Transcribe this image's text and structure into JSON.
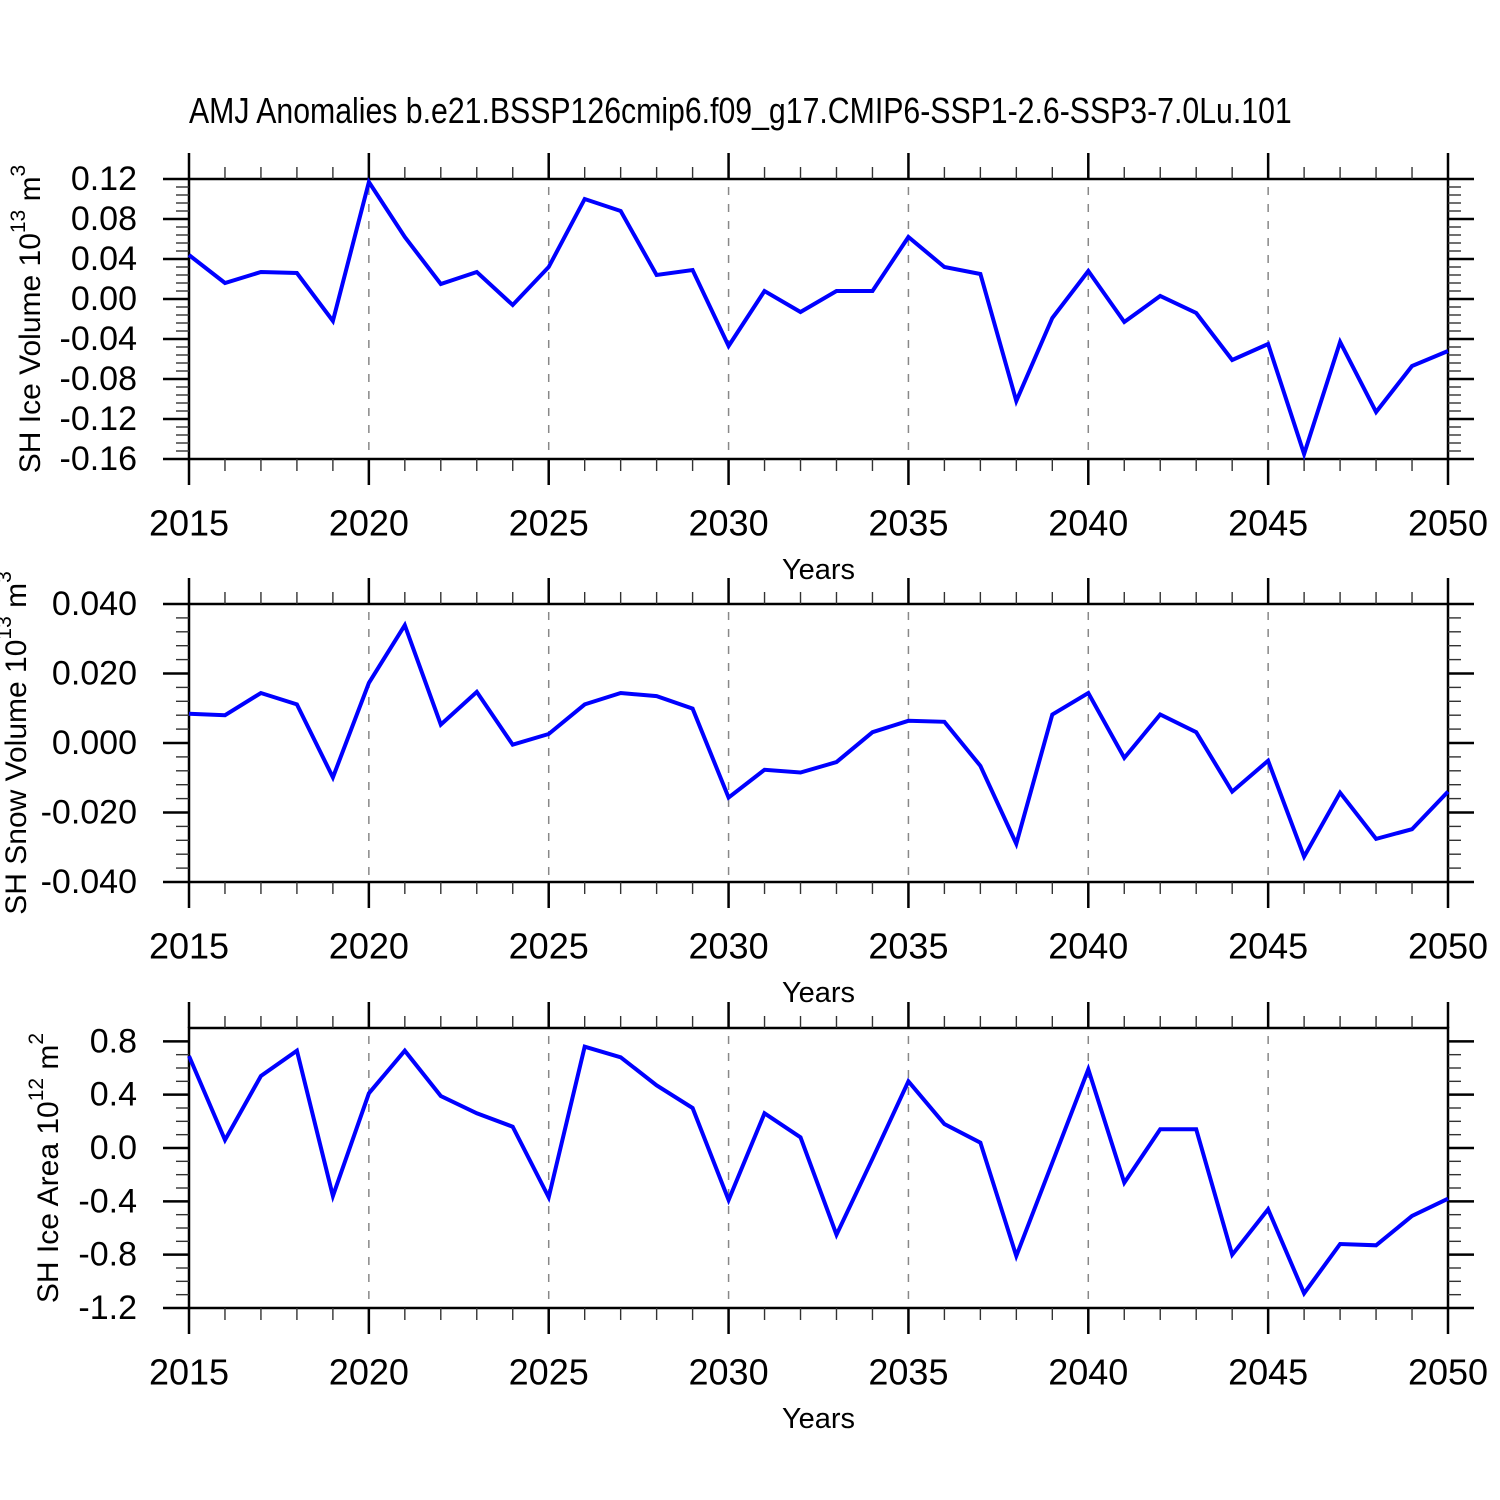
{
  "title": "AMJ Anomalies b.e21.BSSP126cmip6.f09_g17.CMIP6-SSP1-2.6-SSP3-7.0Lu.101",
  "x_axis": {
    "label": "Years",
    "major_ticks": [
      2015,
      2020,
      2025,
      2030,
      2035,
      2040,
      2045,
      2050
    ],
    "gridline_years": [
      2020,
      2025,
      2030,
      2035,
      2040,
      2045
    ],
    "minor_step_years": 1,
    "range": [
      2015,
      2050
    ]
  },
  "style": {
    "line_color": "#0000ff",
    "frame_color": "#000000",
    "gridline_color": "#888888"
  },
  "chart_data": [
    {
      "type": "line",
      "name": "sh-ice-volume",
      "ylabel_plain": "SH Ice Volume 10^13 m^3",
      "ylabel_segments": [
        {
          "t": "SH Ice Volume 10",
          "sup": false
        },
        {
          "t": "13",
          "sup": true
        },
        {
          "t": " m",
          "sup": false
        },
        {
          "t": "3",
          "sup": true
        }
      ],
      "xlabel": "Years",
      "ylim": [
        -0.16,
        0.12
      ],
      "yticks": [
        {
          "v": 0.12,
          "label": "0.12"
        },
        {
          "v": 0.08,
          "label": "0.08"
        },
        {
          "v": 0.04,
          "label": "0.04"
        },
        {
          "v": 0.0,
          "label": "0.00"
        },
        {
          "v": -0.04,
          "label": "-0.04"
        },
        {
          "v": -0.08,
          "label": "-0.08"
        },
        {
          "v": -0.12,
          "label": "-0.12"
        },
        {
          "v": -0.16,
          "label": "-0.16"
        }
      ],
      "y_major_step": 0.04,
      "y_minor_step": 0.008,
      "x": [
        2015,
        2016,
        2017,
        2018,
        2019,
        2020,
        2021,
        2022,
        2023,
        2024,
        2025,
        2026,
        2027,
        2028,
        2029,
        2030,
        2031,
        2032,
        2033,
        2034,
        2035,
        2036,
        2037,
        2038,
        2039,
        2040,
        2041,
        2042,
        2043,
        2044,
        2045,
        2046,
        2047,
        2048,
        2049,
        2050
      ],
      "values": [
        0.044,
        0.016,
        0.027,
        0.026,
        -0.022,
        0.117,
        0.062,
        0.015,
        0.027,
        -0.006,
        0.032,
        0.1,
        0.088,
        0.024,
        0.029,
        -0.047,
        0.008,
        -0.013,
        0.008,
        0.008,
        0.062,
        0.032,
        0.025,
        -0.102,
        -0.019,
        0.028,
        -0.023,
        0.003,
        -0.014,
        -0.061,
        -0.045,
        -0.155,
        -0.043,
        -0.113,
        -0.067,
        -0.052
      ]
    },
    {
      "type": "line",
      "name": "sh-snow-volume",
      "ylabel_plain": "SH Snow Volume 10^13 m^3",
      "ylabel_segments": [
        {
          "t": "SH Snow Volume 10",
          "sup": false
        },
        {
          "t": "13",
          "sup": true
        },
        {
          "t": " m",
          "sup": false
        },
        {
          "t": "3",
          "sup": true
        }
      ],
      "xlabel": "Years",
      "ylim": [
        -0.04,
        0.04
      ],
      "yticks": [
        {
          "v": 0.04,
          "label": "0.040"
        },
        {
          "v": 0.02,
          "label": "0.020"
        },
        {
          "v": 0.0,
          "label": "0.000"
        },
        {
          "v": -0.02,
          "label": "-0.020"
        },
        {
          "v": -0.04,
          "label": "-0.040"
        }
      ],
      "y_major_step": 0.02,
      "y_minor_step": 0.004,
      "x": [
        2015,
        2016,
        2017,
        2018,
        2019,
        2020,
        2021,
        2022,
        2023,
        2024,
        2025,
        2026,
        2027,
        2028,
        2029,
        2030,
        2031,
        2032,
        2033,
        2034,
        2035,
        2036,
        2037,
        2038,
        2039,
        2040,
        2041,
        2042,
        2043,
        2044,
        2045,
        2046,
        2047,
        2048,
        2049,
        2050
      ],
      "values": [
        0.0084,
        0.008,
        0.0144,
        0.0111,
        -0.0099,
        0.0173,
        0.0339,
        0.0053,
        0.0147,
        -0.0005,
        0.0026,
        0.0111,
        0.0144,
        0.0135,
        0.0099,
        -0.0157,
        -0.0077,
        -0.0085,
        -0.0055,
        0.0031,
        0.0064,
        0.0061,
        -0.0066,
        -0.029,
        0.0082,
        0.0144,
        -0.0043,
        0.0082,
        0.0031,
        -0.014,
        -0.0051,
        -0.0327,
        -0.0143,
        -0.0276,
        -0.0248,
        -0.014
      ]
    },
    {
      "type": "line",
      "name": "sh-ice-area",
      "ylabel_plain": "SH Ice Area 10^12 m^2",
      "ylabel_segments": [
        {
          "t": "SH Ice Area 10",
          "sup": false
        },
        {
          "t": "12",
          "sup": true
        },
        {
          "t": " m",
          "sup": false
        },
        {
          "t": "2",
          "sup": true
        }
      ],
      "xlabel": "Years",
      "ylim": [
        -1.2,
        0.9
      ],
      "yticks": [
        {
          "v": 0.8,
          "label": "0.8"
        },
        {
          "v": 0.4,
          "label": "0.4"
        },
        {
          "v": 0.0,
          "label": "0.0"
        },
        {
          "v": -0.4,
          "label": "-0.4"
        },
        {
          "v": -0.8,
          "label": "-0.8"
        },
        {
          "v": -1.2,
          "label": "-1.2"
        }
      ],
      "y_major_step": 0.4,
      "y_minor_step": 0.1,
      "x": [
        2015,
        2016,
        2017,
        2018,
        2019,
        2020,
        2021,
        2022,
        2023,
        2024,
        2025,
        2026,
        2027,
        2028,
        2029,
        2030,
        2031,
        2032,
        2033,
        2034,
        2035,
        2036,
        2037,
        2038,
        2039,
        2040,
        2041,
        2042,
        2043,
        2044,
        2045,
        2046,
        2047,
        2048,
        2049,
        2050
      ],
      "values": [
        0.69,
        0.06,
        0.54,
        0.73,
        -0.36,
        0.41,
        0.73,
        0.39,
        0.26,
        0.16,
        -0.37,
        0.76,
        0.68,
        0.47,
        0.3,
        -0.39,
        0.26,
        0.08,
        -0.65,
        -0.08,
        0.5,
        0.18,
        0.04,
        -0.81,
        -0.11,
        0.59,
        -0.26,
        0.14,
        0.14,
        -0.8,
        -0.46,
        -1.09,
        -0.72,
        -0.73,
        -0.51,
        -0.38
      ]
    }
  ]
}
